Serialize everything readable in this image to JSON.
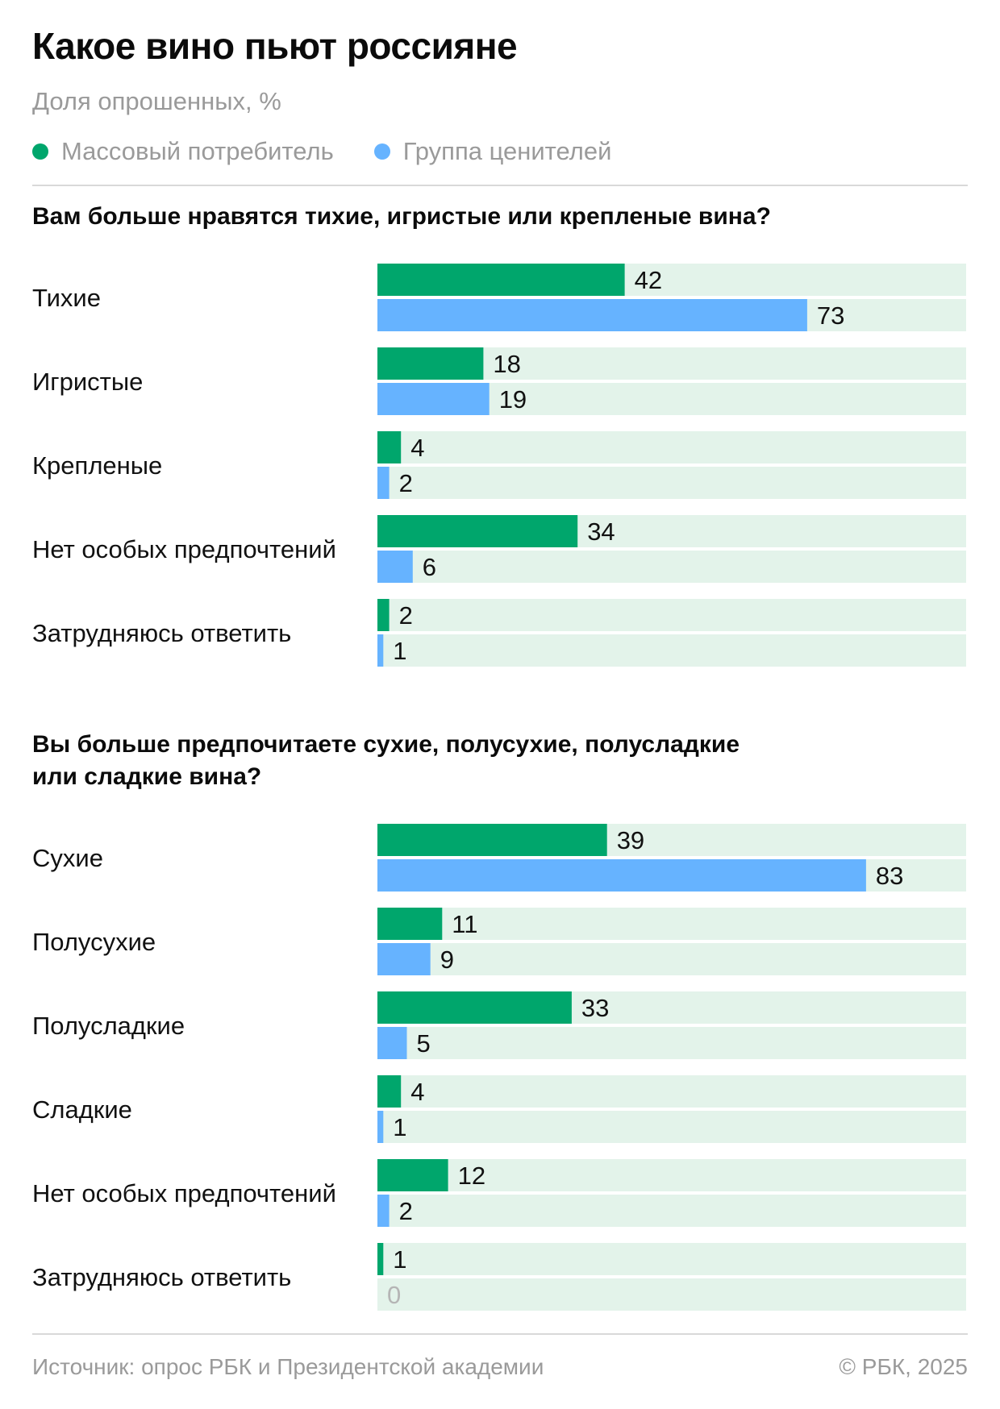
{
  "header": {
    "title": "Какое вино пьют россияне",
    "subtitle": "Доля опрошенных, %"
  },
  "legend": [
    {
      "label": "Массовый потребитель",
      "color": "#00a66c"
    },
    {
      "label": "Группа ценителей",
      "color": "#66b3ff"
    }
  ],
  "colors": {
    "track": "#e3f3ea",
    "mass": "#00a66c",
    "connoisseur": "#66b3ff",
    "zero_label": "#b5b5b5"
  },
  "chart_data": [
    {
      "type": "bar",
      "orientation": "horizontal",
      "title": "Вам больше нравятся тихие, игристые или крепленые вина?",
      "categories": [
        "Тихие",
        "Игристые",
        "Крепленые",
        "Нет особых предпочтений",
        "Затрудняюсь ответить"
      ],
      "series": [
        {
          "name": "Массовый потребитель",
          "values": [
            42,
            18,
            4,
            34,
            2
          ]
        },
        {
          "name": "Группа ценителей",
          "values": [
            73,
            19,
            2,
            6,
            1
          ]
        }
      ],
      "xlim": [
        0,
        100
      ]
    },
    {
      "type": "bar",
      "orientation": "horizontal",
      "title": "Вы больше предпочитаете сухие, полусухие, полусладкие\nили сладкие вина?",
      "categories": [
        "Сухие",
        "Полусухие",
        "Полусладкие",
        "Сладкие",
        "Нет особых предпочтений",
        "Затрудняюсь ответить"
      ],
      "series": [
        {
          "name": "Массовый потребитель",
          "values": [
            39,
            11,
            33,
            4,
            12,
            1
          ]
        },
        {
          "name": "Группа ценителей",
          "values": [
            83,
            9,
            5,
            1,
            2,
            0
          ]
        }
      ],
      "xlim": [
        0,
        100
      ]
    }
  ],
  "footer": {
    "source": "Источник: опрос РБК и Президентской академии",
    "copyright": "© РБК, 2025"
  }
}
